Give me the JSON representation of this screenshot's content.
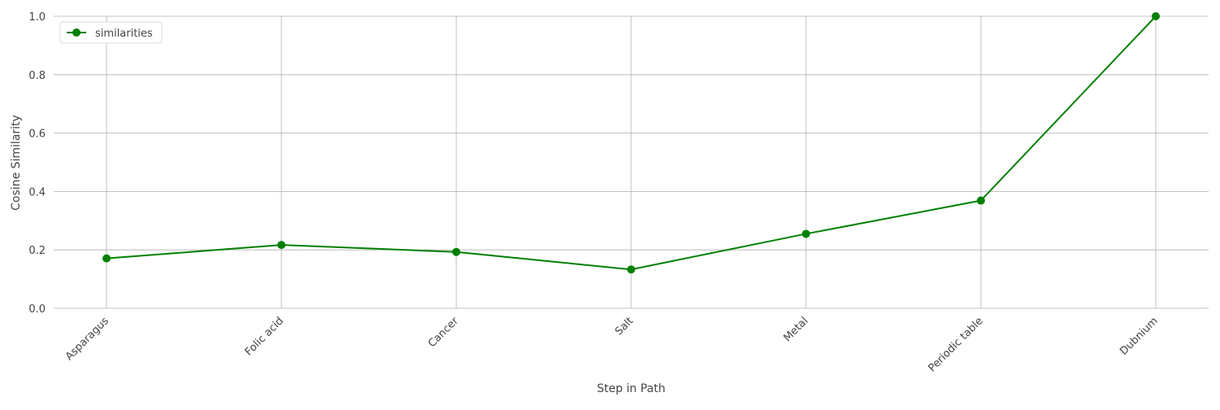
{
  "chart_data": {
    "type": "line",
    "categories": [
      "Asparagus",
      "Folic acid",
      "Cancer",
      "Salt",
      "Metal",
      "Periodic table",
      "Dubnium"
    ],
    "series": [
      {
        "name": "similarities",
        "values": [
          0.171,
          0.217,
          0.193,
          0.133,
          0.255,
          0.369,
          1.0
        ],
        "color": "#008000",
        "marker": "circle"
      }
    ],
    "xlabel": "Step in Path",
    "ylabel": "Cosine Similarity",
    "ylim": [
      0.0,
      1.0
    ],
    "yticks": [
      "0.0",
      "0.2",
      "0.4",
      "0.6",
      "0.8",
      "1.0"
    ],
    "grid": true,
    "legend_position": "top-left"
  }
}
